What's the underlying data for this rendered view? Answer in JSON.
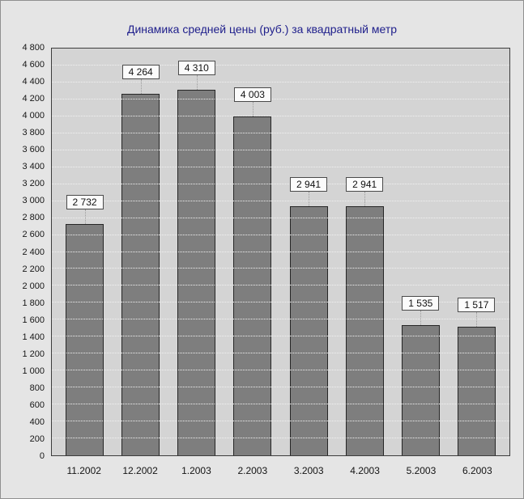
{
  "chart_data": {
    "type": "bar",
    "title": "Динамика средней цены (руб.) за квадратный метр",
    "categories": [
      "11.2002",
      "12.2002",
      "1.2003",
      "2.2003",
      "3.2003",
      "4.2003",
      "5.2003",
      "6.2003"
    ],
    "values": [
      2732,
      4264,
      4310,
      4003,
      2941,
      2941,
      1535,
      1517
    ],
    "value_labels": [
      "2 732",
      "4 264",
      "4 310",
      "4 003",
      "2 941",
      "2 941",
      "1 535",
      "1 517"
    ],
    "xlabel": "",
    "ylabel": "",
    "ylim": [
      0,
      4800
    ],
    "ytick_step": 200,
    "grid": true,
    "legend": "none",
    "colors": {
      "page_bg": "#e5e5e5",
      "plot_bg": "#d4d4d4",
      "bar_fill": "#7e7e7e",
      "bar_border": "#262626",
      "grid_line": "#f2f2f2",
      "title_color": "#20208c",
      "label_box_bg": "#fbfbfb",
      "label_box_border": "#4a4a4a"
    }
  }
}
